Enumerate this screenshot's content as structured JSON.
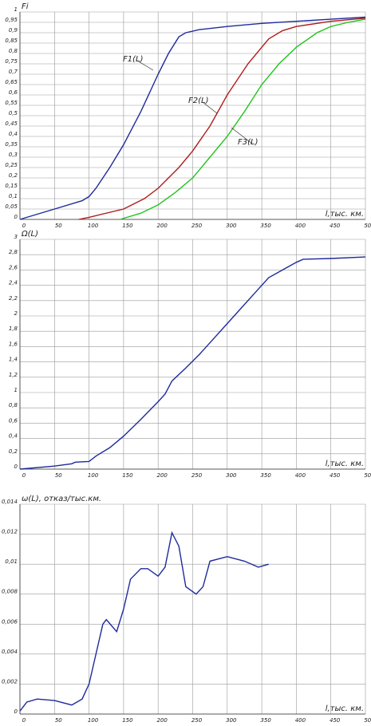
{
  "chart_data": [
    {
      "type": "line",
      "title": "Fi",
      "xlabel": "l,тыс. км.",
      "grid": true,
      "xlim": [
        0,
        500
      ],
      "xticks": [
        0,
        50,
        100,
        150,
        200,
        250,
        300,
        350,
        400,
        450,
        500
      ],
      "ylim": [
        0,
        1
      ],
      "yticks": [
        0,
        {
          "value": 0.05,
          "label": "0,05"
        },
        {
          "value": 0.1,
          "label": "0,1"
        },
        {
          "value": 0.15,
          "label": "0,15"
        },
        {
          "value": 0.2,
          "label": "0,2"
        },
        {
          "value": 0.25,
          "label": "0,25"
        },
        {
          "value": 0.3,
          "label": "0,3"
        },
        {
          "value": 0.35,
          "label": "0,35"
        },
        {
          "value": 0.4,
          "label": "0,4"
        },
        {
          "value": 0.45,
          "label": "0,45"
        },
        {
          "value": 0.5,
          "label": "0,5"
        },
        {
          "value": 0.55,
          "label": "0,55"
        },
        {
          "value": 0.6,
          "label": "0,6"
        },
        {
          "value": 0.65,
          "label": "0,65"
        },
        {
          "value": 0.7,
          "label": "0,7"
        },
        {
          "value": 0.75,
          "label": "0,75"
        },
        {
          "value": 0.8,
          "label": "0,8"
        },
        {
          "value": 0.85,
          "label": "0,85"
        },
        {
          "value": 0.9,
          "label": "0,9"
        },
        {
          "value": 0.95,
          "label": "0,95"
        },
        1
      ],
      "annotations": [
        "F1(L)",
        "F2(L)",
        "F3(L)"
      ],
      "series": [
        {
          "color": "#1f2a9c",
          "x": [
            0,
            50,
            90,
            100,
            110,
            130,
            150,
            175,
            200,
            215,
            230,
            240,
            260,
            300,
            350,
            400,
            450,
            500
          ],
          "values": [
            0,
            0.05,
            0.09,
            0.11,
            0.15,
            0.25,
            0.36,
            0.52,
            0.7,
            0.8,
            0.88,
            0.9,
            0.915,
            0.93,
            0.945,
            0.955,
            0.965,
            0.975
          ]
        },
        {
          "color": "#b01c1c",
          "x": [
            85,
            100,
            150,
            180,
            200,
            230,
            250,
            275,
            300,
            330,
            360,
            380,
            400,
            450,
            500
          ],
          "values": [
            0,
            0.01,
            0.05,
            0.1,
            0.15,
            0.25,
            0.33,
            0.45,
            0.6,
            0.75,
            0.87,
            0.91,
            0.93,
            0.955,
            0.97
          ]
        },
        {
          "color": "#22c41e",
          "x": [
            145,
            175,
            200,
            225,
            250,
            275,
            300,
            325,
            350,
            375,
            400,
            430,
            450,
            475,
            500
          ],
          "values": [
            0,
            0.03,
            0.07,
            0.13,
            0.2,
            0.3,
            0.4,
            0.52,
            0.65,
            0.75,
            0.83,
            0.9,
            0.93,
            0.95,
            0.965
          ]
        }
      ]
    },
    {
      "type": "line",
      "title": "Ω(L)",
      "xlabel": "l,тыс. км.",
      "grid": true,
      "xlim": [
        0,
        500
      ],
      "xticks": [
        0,
        50,
        100,
        150,
        200,
        250,
        300,
        350,
        400,
        450,
        500
      ],
      "ylim": [
        0,
        3
      ],
      "yticks": [
        0,
        {
          "value": 0.2,
          "label": "0,2"
        },
        {
          "value": 0.4,
          "label": "0,4"
        },
        {
          "value": 0.6,
          "label": "0,6"
        },
        {
          "value": 0.8,
          "label": "0,8"
        },
        1,
        {
          "value": 1.2,
          "label": "1,2"
        },
        {
          "value": 1.4,
          "label": "1,4"
        },
        {
          "value": 1.6,
          "label": "1,6"
        },
        {
          "value": 1.8,
          "label": "1,8"
        },
        2,
        {
          "value": 2.2,
          "label": "2,2"
        },
        {
          "value": 2.4,
          "label": "2,4"
        },
        {
          "value": 2.6,
          "label": "2,6"
        },
        {
          "value": 2.8,
          "label": "2,8"
        },
        3
      ],
      "series": [
        {
          "color": "#1f2a9c",
          "x": [
            0,
            50,
            75,
            80,
            100,
            110,
            130,
            150,
            175,
            200,
            210,
            220,
            240,
            260,
            280,
            300,
            320,
            340,
            360,
            380,
            400,
            410,
            450,
            500
          ],
          "values": [
            0,
            0.04,
            0.07,
            0.09,
            0.1,
            0.17,
            0.28,
            0.43,
            0.65,
            0.88,
            0.98,
            1.15,
            1.32,
            1.5,
            1.7,
            1.9,
            2.1,
            2.3,
            2.5,
            2.6,
            2.7,
            2.74,
            2.75,
            2.77
          ]
        }
      ]
    },
    {
      "type": "line",
      "title": "ω(L), отказ/тыс.км.",
      "xlabel": "l,тыс. км.",
      "grid": true,
      "xlim": [
        0,
        500
      ],
      "xticks": [
        0,
        50,
        100,
        150,
        200,
        250,
        300,
        350,
        400,
        450,
        500
      ],
      "ylim": [
        0,
        0.014
      ],
      "yticks": [
        0,
        {
          "value": 0.002,
          "label": "0,002"
        },
        {
          "value": 0.004,
          "label": "0,004"
        },
        {
          "value": 0.006,
          "label": "0,006"
        },
        {
          "value": 0.008,
          "label": "0,008"
        },
        {
          "value": 0.01,
          "label": "0,01"
        },
        {
          "value": 0.012,
          "label": "0,012"
        },
        {
          "value": 0.014,
          "label": "0,014"
        }
      ],
      "series": [
        {
          "color": "#1f2a9c",
          "x": [
            0,
            10,
            25,
            50,
            75,
            90,
            100,
            110,
            120,
            125,
            140,
            150,
            160,
            175,
            185,
            200,
            210,
            220,
            230,
            240,
            255,
            265,
            275,
            300,
            325,
            345,
            360
          ],
          "values": [
            0.0002,
            0.0008,
            0.001,
            0.0009,
            0.0006,
            0.001,
            0.002,
            0.004,
            0.006,
            0.0063,
            0.0055,
            0.007,
            0.009,
            0.0097,
            0.0097,
            0.0092,
            0.0098,
            0.0121,
            0.0112,
            0.0085,
            0.008,
            0.0085,
            0.0102,
            0.0105,
            0.0102,
            0.0098,
            0.01
          ]
        }
      ]
    }
  ]
}
